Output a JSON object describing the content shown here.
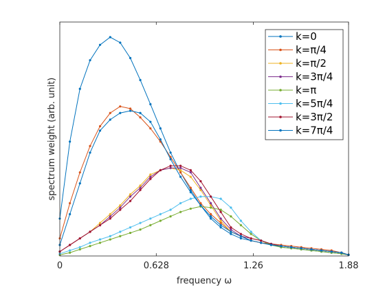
{
  "chart_data": {
    "type": "line",
    "title": "",
    "xlabel": "frequency ω",
    "ylabel": "spectrum weight    (arb. unit)",
    "xlim": [
      0,
      1.88
    ],
    "ylim": [
      0,
      1.0
    ],
    "x_ticks": [
      0,
      0.628,
      1.26,
      1.88
    ],
    "x_tick_labels": [
      "0",
      "0.628",
      "1.26",
      "1.88"
    ],
    "y_ticks_shown": false,
    "grid": false,
    "legend_position": "top-right",
    "x": [
      0,
      0.0655,
      0.131,
      0.197,
      0.262,
      0.328,
      0.393,
      0.459,
      0.524,
      0.59,
      0.655,
      0.721,
      0.786,
      0.852,
      0.917,
      0.983,
      1.048,
      1.114,
      1.179,
      1.245,
      1.31,
      1.376,
      1.441,
      1.507,
      1.572,
      1.638,
      1.703,
      1.769,
      1.834,
      1.88
    ],
    "series": [
      {
        "name": "k=0",
        "color": "#0072BD",
        "values": [
          0.17,
          0.52,
          0.76,
          0.89,
          0.96,
          0.995,
          0.97,
          0.9,
          0.8,
          0.69,
          0.58,
          0.47,
          0.38,
          0.3,
          0.23,
          0.17,
          0.13,
          0.1,
          0.08,
          0.07,
          0.06,
          0.05,
          0.04,
          0.035,
          0.03,
          0.025,
          0.02,
          0.015,
          0.01,
          0.005
        ]
      },
      {
        "name": "k=π/4",
        "color": "#D95319",
        "values": [
          0.08,
          0.24,
          0.38,
          0.5,
          0.59,
          0.65,
          0.68,
          0.67,
          0.63,
          0.58,
          0.52,
          0.45,
          0.38,
          0.31,
          0.24,
          0.19,
          0.15,
          0.11,
          0.09,
          0.07,
          0.06,
          0.055,
          0.05,
          0.045,
          0.04,
          0.035,
          0.03,
          0.025,
          0.015,
          0.005
        ]
      },
      {
        "name": "k=π/2",
        "color": "#EDB120",
        "values": [
          0.02,
          0.05,
          0.08,
          0.11,
          0.15,
          0.19,
          0.23,
          0.28,
          0.32,
          0.37,
          0.39,
          0.4,
          0.39,
          0.36,
          0.3,
          0.23,
          0.16,
          0.11,
          0.09,
          0.08,
          0.07,
          0.055,
          0.045,
          0.04,
          0.035,
          0.03,
          0.025,
          0.02,
          0.015,
          0.005
        ]
      },
      {
        "name": "k=3π/4",
        "color": "#7E2F8E",
        "values": [
          0.02,
          0.05,
          0.08,
          0.11,
          0.14,
          0.18,
          0.22,
          0.27,
          0.31,
          0.36,
          0.39,
          0.4,
          0.4,
          0.38,
          0.31,
          0.24,
          0.17,
          0.12,
          0.09,
          0.08,
          0.07,
          0.055,
          0.045,
          0.04,
          0.035,
          0.03,
          0.025,
          0.02,
          0.015,
          0.005
        ]
      },
      {
        "name": "k=π",
        "color": "#77AC30",
        "values": [
          0.005,
          0.015,
          0.03,
          0.045,
          0.06,
          0.075,
          0.09,
          0.105,
          0.12,
          0.14,
          0.16,
          0.18,
          0.2,
          0.215,
          0.225,
          0.22,
          0.21,
          0.18,
          0.14,
          0.1,
          0.07,
          0.05,
          0.04,
          0.035,
          0.03,
          0.025,
          0.02,
          0.015,
          0.01,
          0.005
        ]
      },
      {
        "name": "k=5π/4",
        "color": "#4DBEEE",
        "values": [
          0.01,
          0.025,
          0.04,
          0.06,
          0.075,
          0.09,
          0.11,
          0.13,
          0.15,
          0.17,
          0.19,
          0.21,
          0.24,
          0.26,
          0.27,
          0.27,
          0.26,
          0.22,
          0.16,
          0.11,
          0.07,
          0.055,
          0.045,
          0.04,
          0.035,
          0.03,
          0.025,
          0.02,
          0.015,
          0.005
        ]
      },
      {
        "name": "k=3π/2",
        "color": "#A2142F",
        "values": [
          0.02,
          0.05,
          0.08,
          0.11,
          0.14,
          0.17,
          0.21,
          0.25,
          0.3,
          0.35,
          0.39,
          0.41,
          0.41,
          0.39,
          0.34,
          0.27,
          0.2,
          0.13,
          0.1,
          0.08,
          0.07,
          0.055,
          0.045,
          0.04,
          0.035,
          0.03,
          0.025,
          0.02,
          0.015,
          0.005
        ]
      },
      {
        "name": "k=7π/4",
        "color": "#0072BD",
        "values": [
          0.05,
          0.19,
          0.33,
          0.47,
          0.57,
          0.62,
          0.65,
          0.66,
          0.65,
          0.61,
          0.53,
          0.44,
          0.36,
          0.29,
          0.23,
          0.18,
          0.14,
          0.11,
          0.09,
          0.07,
          0.06,
          0.05,
          0.045,
          0.04,
          0.035,
          0.03,
          0.025,
          0.02,
          0.015,
          0.005
        ]
      }
    ]
  }
}
